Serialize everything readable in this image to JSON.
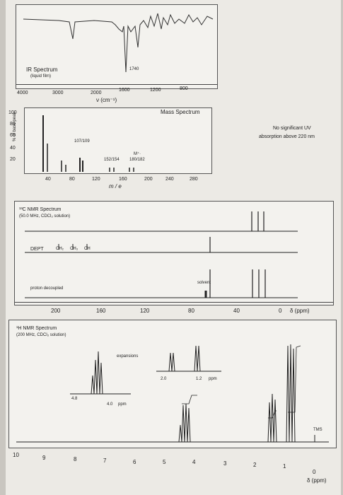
{
  "ir": {
    "title": "IR Spectrum",
    "subtitle": "(liquid film)",
    "peak_label": "1740",
    "ticks": [
      "4000",
      "3000",
      "2000",
      "1600",
      "1200",
      "800"
    ],
    "xlabel": "ν (cm⁻¹)"
  },
  "ms": {
    "title": "Mass Spectrum",
    "ylabel": "% of base peak",
    "yticks": [
      "100",
      "80",
      "60",
      "40",
      "20"
    ],
    "xticks": [
      "40",
      "80",
      "120",
      "160",
      "200",
      "240",
      "280"
    ],
    "xlabel": "m / e",
    "labels": [
      "107/109",
      "152/154",
      "M⁺·",
      "180/182"
    ]
  },
  "uv": {
    "line1": "No significant UV",
    "line2": "absorption above 220 nm"
  },
  "c13": {
    "title": "¹³C NMR Spectrum",
    "subtitle": "(50.0 MHz, CDCl₃ solution)",
    "dept": "DEPT",
    "dept_ch2": "CH₂",
    "dept_ch3": "CH₃",
    "dept_ch": "CH",
    "proton_decoupled": "proton decoupled",
    "solvent": "solvent",
    "xticks": [
      "200",
      "160",
      "120",
      "80",
      "40",
      "0"
    ],
    "axis_unit": "δ (ppm)"
  },
  "h1": {
    "title": "¹H NMR Spectrum",
    "subtitle": "(200 MHz, CDCl₃ solution)",
    "expansions": "expansions",
    "exp1_ticks": [
      "4.8",
      "4.0"
    ],
    "exp1_unit": "ppm",
    "exp2_ticks": [
      "2.0",
      "1.2"
    ],
    "exp2_unit": "ppm",
    "tms": "TMS",
    "xticks": [
      "10",
      "9",
      "8",
      "7",
      "6",
      "5",
      "4",
      "3",
      "2",
      "1",
      "0"
    ],
    "axis_unit": "δ (ppm)"
  }
}
